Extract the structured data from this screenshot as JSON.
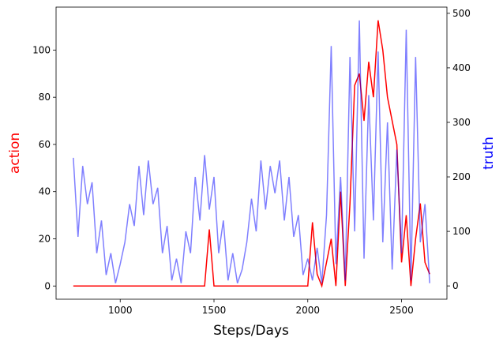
{
  "chart_data": {
    "type": "line",
    "xlabel": "Steps/Days",
    "ylabel": "action",
    "y2label": "truth",
    "x": [
      750,
      775,
      800,
      825,
      850,
      875,
      900,
      925,
      950,
      975,
      1000,
      1025,
      1050,
      1075,
      1100,
      1125,
      1150,
      1175,
      1200,
      1225,
      1250,
      1275,
      1300,
      1325,
      1350,
      1375,
      1400,
      1425,
      1450,
      1475,
      1500,
      1525,
      1550,
      1575,
      1600,
      1625,
      1650,
      1675,
      1700,
      1725,
      1750,
      1775,
      1800,
      1825,
      1850,
      1875,
      1900,
      1925,
      1950,
      1975,
      2000,
      2025,
      2050,
      2075,
      2100,
      2125,
      2150,
      2175,
      2200,
      2225,
      2250,
      2275,
      2300,
      2325,
      2350,
      2375,
      2400,
      2425,
      2450,
      2475,
      2500,
      2525,
      2550,
      2575,
      2600,
      2625,
      2650
    ],
    "series": [
      {
        "color": "#ff0000",
        "values": [
          0,
          0,
          0,
          0,
          0,
          0,
          0,
          0,
          0,
          0,
          0,
          0,
          0,
          0,
          0,
          0,
          0,
          0,
          0,
          0,
          0,
          0,
          0,
          0,
          0,
          0,
          0,
          0,
          0,
          24,
          0,
          0,
          0,
          0,
          0,
          0,
          0,
          0,
          0,
          0,
          0,
          0,
          0,
          0,
          0,
          0,
          0,
          0,
          0,
          0,
          0,
          27,
          5,
          0,
          10,
          20,
          0,
          40,
          0,
          35,
          85,
          90,
          70,
          95,
          80,
          112.6,
          100,
          80,
          70,
          60,
          10,
          30,
          0,
          20,
          35,
          10,
          5
        ]
      },
      {
        "color": "#0000ff",
        "axis": "y2",
        "values": [
          235,
          90,
          220,
          150,
          190,
          60,
          120,
          20,
          60,
          5,
          40,
          80,
          150,
          110,
          220,
          130,
          230,
          150,
          180,
          60,
          110,
          10,
          50,
          5,
          100,
          60,
          200,
          120,
          240,
          140,
          200,
          60,
          120,
          10,
          60,
          5,
          30,
          80,
          160,
          100,
          230,
          140,
          220,
          170,
          230,
          120,
          200,
          90,
          130,
          20,
          50,
          10,
          70,
          5,
          130,
          440,
          40,
          200,
          10,
          420,
          100,
          487,
          50,
          350,
          120,
          430,
          80,
          300,
          30,
          250,
          60,
          470,
          10,
          420,
          80,
          150,
          5
        ]
      }
    ],
    "xlim": [
      658,
      2742
    ],
    "xticks": [
      1000,
      1500,
      2000,
      2500
    ],
    "ylim": [
      -5.6,
      118.2
    ],
    "yticks": [
      0,
      20,
      40,
      60,
      80,
      100
    ],
    "y2lim": [
      -24.4,
      511.4
    ],
    "y2ticks": [
      0,
      100,
      200,
      300,
      400,
      500
    ]
  }
}
